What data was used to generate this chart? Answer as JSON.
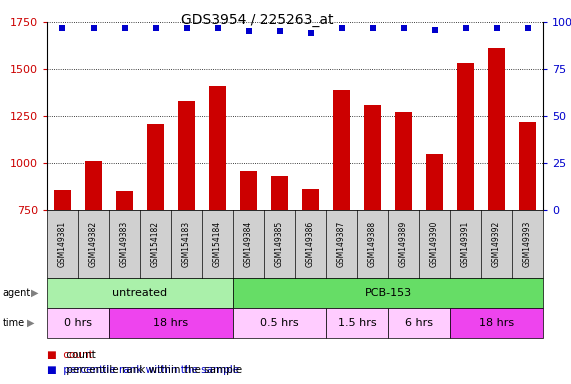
{
  "title": "GDS3954 / 225263_at",
  "samples": [
    "GSM149381",
    "GSM149382",
    "GSM149383",
    "GSM154182",
    "GSM154183",
    "GSM154184",
    "GSM149384",
    "GSM149385",
    "GSM149386",
    "GSM149387",
    "GSM149388",
    "GSM149389",
    "GSM149390",
    "GSM149391",
    "GSM149392",
    "GSM149393"
  ],
  "counts": [
    855,
    1010,
    850,
    1210,
    1330,
    1410,
    960,
    930,
    860,
    1390,
    1310,
    1270,
    1050,
    1530,
    1610,
    1220
  ],
  "percentiles": [
    97,
    97,
    97,
    97,
    97,
    97,
    95,
    95,
    94,
    97,
    97,
    97,
    96,
    97,
    97,
    97
  ],
  "bar_color": "#cc0000",
  "dot_color": "#0000cc",
  "ylim_left": [
    750,
    1750
  ],
  "ylim_right": [
    0,
    100
  ],
  "yticks_left": [
    750,
    1000,
    1250,
    1500,
    1750
  ],
  "yticks_right": [
    0,
    25,
    50,
    75,
    100
  ],
  "agent_groups": [
    {
      "label": "untreated",
      "start": 0,
      "end": 6,
      "color": "#aaf0aa"
    },
    {
      "label": "PCB-153",
      "start": 6,
      "end": 16,
      "color": "#66dd66"
    }
  ],
  "time_groups": [
    {
      "label": "0 hrs",
      "start": 0,
      "end": 2,
      "color": "#ffccff"
    },
    {
      "label": "18 hrs",
      "start": 2,
      "end": 6,
      "color": "#ee44ee"
    },
    {
      "label": "0.5 hrs",
      "start": 6,
      "end": 9,
      "color": "#ffccff"
    },
    {
      "label": "1.5 hrs",
      "start": 9,
      "end": 11,
      "color": "#ffccff"
    },
    {
      "label": "6 hrs",
      "start": 11,
      "end": 13,
      "color": "#ffccff"
    },
    {
      "label": "18 hrs",
      "start": 13,
      "end": 16,
      "color": "#ee44ee"
    }
  ],
  "sample_label_bg": "#d0d0d0",
  "background_color": "#ffffff",
  "title_fontsize": 10,
  "bar_fontsize": 7,
  "label_fontsize": 8
}
